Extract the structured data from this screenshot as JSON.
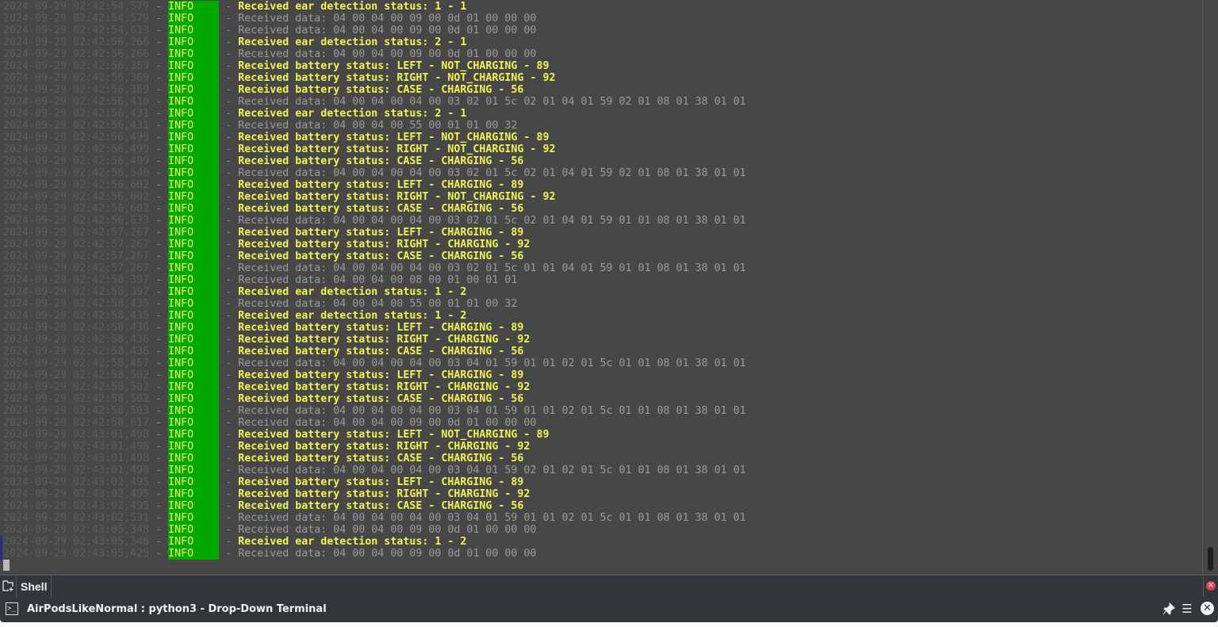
{
  "colors": {
    "background": "#474747",
    "info_badge": "#00a800",
    "highlight": "#f2f254",
    "data_text": "#9b9b9b",
    "timestamp": "#5e5e5e"
  },
  "lines": [
    {
      "ts": "2024-09-29 02:42:54,579",
      "level": "INFO",
      "kind": "hi",
      "msg": "Received ear detection status: 1 - 1"
    },
    {
      "ts": "2024-09-29 02:42:54,579",
      "level": "INFO",
      "kind": "data",
      "msg": "Received data: 04 00 04 00 09 00 0d 01 00 00 00"
    },
    {
      "ts": "2024-09-29 02:42:54,613",
      "level": "INFO",
      "kind": "data",
      "msg": "Received data: 04 00 04 00 09 00 0d 01 00 00 00"
    },
    {
      "ts": "2024-09-29 02:42:56,266",
      "level": "INFO",
      "kind": "hi",
      "msg": "Received ear detection status: 2 - 1"
    },
    {
      "ts": "2024-09-29 02:42:56,266",
      "level": "INFO",
      "kind": "data",
      "msg": "Received data: 04 00 04 00 09 00 0d 01 00 00 00"
    },
    {
      "ts": "2024-09-29 02:42:56,369",
      "level": "INFO",
      "kind": "hi",
      "msg": "Received battery status: LEFT - NOT_CHARGING - 89"
    },
    {
      "ts": "2024-09-29 02:42:56,369",
      "level": "INFO",
      "kind": "hi",
      "msg": "Received battery status: RIGHT - NOT_CHARGING - 92"
    },
    {
      "ts": "2024-09-29 02:42:56,369",
      "level": "INFO",
      "kind": "hi",
      "msg": "Received battery status: CASE - CHARGING - 56"
    },
    {
      "ts": "2024-09-29 02:42:56,410",
      "level": "INFO",
      "kind": "data",
      "msg": "Received data: 04 00 04 00 04 00 03 02 01 5c 02 01 04 01 59 02 01 08 01 38 01 01"
    },
    {
      "ts": "2024-09-29 02:42:56,431",
      "level": "INFO",
      "kind": "hi",
      "msg": "Received ear detection status: 2 - 1"
    },
    {
      "ts": "2024-09-29 02:42:56,431",
      "level": "INFO",
      "kind": "data",
      "msg": "Received data: 04 00 04 00 55 00 01 01 00 32"
    },
    {
      "ts": "2024-09-29 02:42:56,499",
      "level": "INFO",
      "kind": "hi",
      "msg": "Received battery status: LEFT - NOT_CHARGING - 89"
    },
    {
      "ts": "2024-09-29 02:42:56,499",
      "level": "INFO",
      "kind": "hi",
      "msg": "Received battery status: RIGHT - NOT_CHARGING - 92"
    },
    {
      "ts": "2024-09-29 02:42:56,499",
      "level": "INFO",
      "kind": "hi",
      "msg": "Received battery status: CASE - CHARGING - 56"
    },
    {
      "ts": "2024-09-29 02:42:56,540",
      "level": "INFO",
      "kind": "data",
      "msg": "Received data: 04 00 04 00 04 00 03 02 01 5c 02 01 04 01 59 02 01 08 01 38 01 01"
    },
    {
      "ts": "2024-09-29 02:42:56,602",
      "level": "INFO",
      "kind": "hi",
      "msg": "Received battery status: LEFT - CHARGING - 89"
    },
    {
      "ts": "2024-09-29 02:42:56,602",
      "level": "INFO",
      "kind": "hi",
      "msg": "Received battery status: RIGHT - NOT_CHARGING - 92"
    },
    {
      "ts": "2024-09-29 02:42:56,602",
      "level": "INFO",
      "kind": "hi",
      "msg": "Received battery status: CASE - CHARGING - 56"
    },
    {
      "ts": "2024-09-29 02:42:56,633",
      "level": "INFO",
      "kind": "data",
      "msg": "Received data: 04 00 04 00 04 00 03 02 01 5c 02 01 04 01 59 01 01 08 01 38 01 01"
    },
    {
      "ts": "2024-09-29 02:42:57,267",
      "level": "INFO",
      "kind": "hi",
      "msg": "Received battery status: LEFT - CHARGING - 89"
    },
    {
      "ts": "2024-09-29 02:42:57,267",
      "level": "INFO",
      "kind": "hi",
      "msg": "Received battery status: RIGHT - CHARGING - 92"
    },
    {
      "ts": "2024-09-29 02:42:57,267",
      "level": "INFO",
      "kind": "hi",
      "msg": "Received battery status: CASE - CHARGING - 56"
    },
    {
      "ts": "2024-09-29 02:42:57,267",
      "level": "INFO",
      "kind": "data",
      "msg": "Received data: 04 00 04 00 04 00 03 02 01 5c 01 01 04 01 59 01 01 08 01 38 01 01"
    },
    {
      "ts": "2024-09-29 02:42:58,397",
      "level": "INFO",
      "kind": "data",
      "msg": "Received data: 04 00 04 00 08 00 01 00 01 01"
    },
    {
      "ts": "2024-09-29 02:42:58,397",
      "level": "INFO",
      "kind": "hi",
      "msg": "Received ear detection status: 1 - 2"
    },
    {
      "ts": "2024-09-29 02:42:58,435",
      "level": "INFO",
      "kind": "data",
      "msg": "Received data: 04 00 04 00 55 00 01 01 00 32"
    },
    {
      "ts": "2024-09-29 02:42:58,435",
      "level": "INFO",
      "kind": "hi",
      "msg": "Received ear detection status: 1 - 2"
    },
    {
      "ts": "2024-09-29 02:42:58,436",
      "level": "INFO",
      "kind": "hi",
      "msg": "Received battery status: LEFT - CHARGING - 89"
    },
    {
      "ts": "2024-09-29 02:42:58,436",
      "level": "INFO",
      "kind": "hi",
      "msg": "Received battery status: RIGHT - CHARGING - 92"
    },
    {
      "ts": "2024-09-29 02:42:58,436",
      "level": "INFO",
      "kind": "hi",
      "msg": "Received battery status: CASE - CHARGING - 56"
    },
    {
      "ts": "2024-09-29 02:42:58,457",
      "level": "INFO",
      "kind": "data",
      "msg": "Received data: 04 00 04 00 04 00 03 04 01 59 01 01 02 01 5c 01 01 08 01 38 01 01"
    },
    {
      "ts": "2024-09-29 02:42:58,502",
      "level": "INFO",
      "kind": "hi",
      "msg": "Received battery status: LEFT - CHARGING - 89"
    },
    {
      "ts": "2024-09-29 02:42:58,502",
      "level": "INFO",
      "kind": "hi",
      "msg": "Received battery status: RIGHT - CHARGING - 92"
    },
    {
      "ts": "2024-09-29 02:42:58,502",
      "level": "INFO",
      "kind": "hi",
      "msg": "Received battery status: CASE - CHARGING - 56"
    },
    {
      "ts": "2024-09-29 02:42:58,503",
      "level": "INFO",
      "kind": "data",
      "msg": "Received data: 04 00 04 00 04 00 03 04 01 59 01 01 02 01 5c 01 01 08 01 38 01 01"
    },
    {
      "ts": "2024-09-29 02:42:58,617",
      "level": "INFO",
      "kind": "data",
      "msg": "Received data: 04 00 04 00 09 00 0d 01 00 00 00"
    },
    {
      "ts": "2024-09-29 02:43:01,498",
      "level": "INFO",
      "kind": "hi",
      "msg": "Received battery status: LEFT - NOT_CHARGING - 89"
    },
    {
      "ts": "2024-09-29 02:43:01,498",
      "level": "INFO",
      "kind": "hi",
      "msg": "Received battery status: RIGHT - CHARGING - 92"
    },
    {
      "ts": "2024-09-29 02:43:01,498",
      "level": "INFO",
      "kind": "hi",
      "msg": "Received battery status: CASE - CHARGING - 56"
    },
    {
      "ts": "2024-09-29 02:43:01,498",
      "level": "INFO",
      "kind": "data",
      "msg": "Received data: 04 00 04 00 04 00 03 04 01 59 02 01 02 01 5c 01 01 08 01 38 01 01"
    },
    {
      "ts": "2024-09-29 02:43:02,495",
      "level": "INFO",
      "kind": "hi",
      "msg": "Received battery status: LEFT - CHARGING - 89"
    },
    {
      "ts": "2024-09-29 02:43:02,495",
      "level": "INFO",
      "kind": "hi",
      "msg": "Received battery status: RIGHT - CHARGING - 92"
    },
    {
      "ts": "2024-09-29 02:43:02,495",
      "level": "INFO",
      "kind": "hi",
      "msg": "Received battery status: CASE - CHARGING - 56"
    },
    {
      "ts": "2024-09-29 02:43:02,531",
      "level": "INFO",
      "kind": "data",
      "msg": "Received data: 04 00 04 00 04 00 03 04 01 59 01 01 02 01 5c 01 01 08 01 38 01 01"
    },
    {
      "ts": "2024-09-29 02:43:05,348",
      "level": "INFO",
      "kind": "data",
      "msg": "Received data: 04 00 04 00 09 00 0d 01 00 00 00"
    },
    {
      "ts": "2024-09-29 02:43:05,348",
      "level": "INFO",
      "kind": "hi",
      "msg": "Received ear detection status: 1 - 2"
    },
    {
      "ts": "2024-09-29 02:43:05,425",
      "level": "INFO",
      "kind": "data",
      "msg": "Received data: 04 00 04 00 09 00 0d 01 00 00 00"
    }
  ],
  "separator": " - ",
  "tabs": [
    {
      "label": "Shell"
    }
  ],
  "icons": {
    "new_tab": "new-tab-icon",
    "tab_close": "close-icon",
    "terminal": "terminal-icon",
    "pin": "pin-icon",
    "menu": "hamburger-menu-icon",
    "close": "close-icon"
  },
  "icon_glyphs": {
    "tab_close": "✕",
    "terminal": ">_",
    "pin": "📌",
    "menu": "☰",
    "close": "✕"
  },
  "window": {
    "title": "AirPodsLikeNormal : python3 - Drop-Down Terminal"
  }
}
